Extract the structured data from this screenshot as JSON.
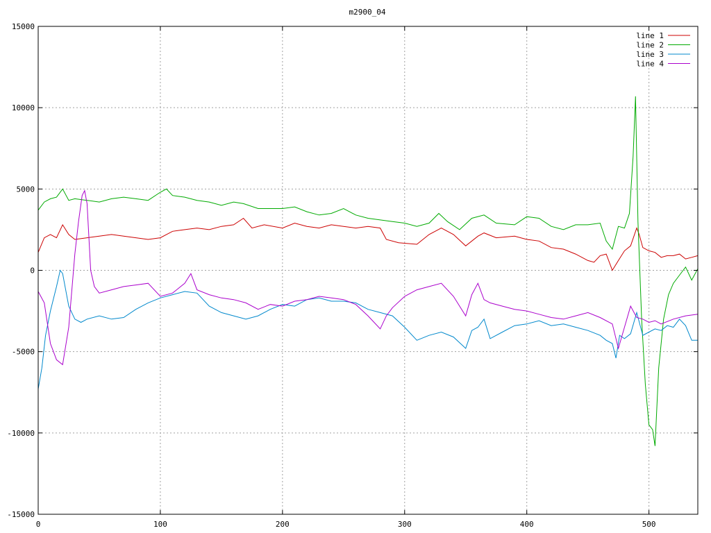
{
  "chart_data": {
    "type": "line",
    "title": "m2900_04",
    "xlabel": "",
    "ylabel": "",
    "xlim": [
      0,
      540
    ],
    "ylim": [
      -15000,
      15000
    ],
    "x_ticks": [
      0,
      100,
      200,
      300,
      400,
      500
    ],
    "y_ticks": [
      -15000,
      -10000,
      -5000,
      0,
      5000,
      10000,
      15000
    ],
    "grid": true,
    "legend_position": "top-right",
    "series": [
      {
        "name": "line 1",
        "color": "#cc0000",
        "x": [
          0,
          5,
          10,
          15,
          20,
          25,
          30,
          40,
          50,
          60,
          70,
          80,
          90,
          100,
          110,
          120,
          130,
          140,
          150,
          160,
          168,
          175,
          185,
          200,
          210,
          220,
          230,
          240,
          250,
          260,
          270,
          280,
          285,
          295,
          310,
          320,
          330,
          340,
          350,
          360,
          365,
          375,
          390,
          400,
          410,
          420,
          430,
          440,
          450,
          455,
          460,
          465,
          470,
          475,
          480,
          485,
          490,
          492,
          495,
          500,
          505,
          510,
          515,
          520,
          525,
          530,
          535,
          540
        ],
        "values": [
          1100,
          2000,
          2200,
          2000,
          2800,
          2200,
          1900,
          2000,
          2100,
          2200,
          2100,
          2000,
          1900,
          2000,
          2400,
          2500,
          2600,
          2500,
          2700,
          2800,
          3200,
          2600,
          2800,
          2600,
          2900,
          2700,
          2600,
          2800,
          2700,
          2600,
          2700,
          2600,
          1900,
          1700,
          1600,
          2200,
          2600,
          2200,
          1500,
          2100,
          2300,
          2000,
          2100,
          1900,
          1800,
          1400,
          1300,
          1000,
          600,
          500,
          900,
          1000,
          0,
          600,
          1200,
          1500,
          2600,
          2200,
          1400,
          1200,
          1100,
          800,
          900,
          900,
          1000,
          700,
          800,
          900
        ]
      },
      {
        "name": "line 2",
        "color": "#00aa00",
        "x": [
          0,
          5,
          10,
          15,
          20,
          25,
          30,
          40,
          50,
          60,
          70,
          80,
          90,
          100,
          105,
          110,
          120,
          130,
          140,
          150,
          160,
          168,
          180,
          200,
          210,
          220,
          230,
          240,
          250,
          260,
          270,
          280,
          290,
          300,
          310,
          320,
          328,
          335,
          345,
          355,
          365,
          375,
          390,
          400,
          410,
          420,
          430,
          440,
          450,
          460,
          465,
          470,
          475,
          480,
          484,
          487,
          489,
          491,
          494,
          497,
          500,
          503,
          505,
          508,
          512,
          516,
          520,
          525,
          530,
          535,
          540
        ],
        "values": [
          3700,
          4200,
          4400,
          4500,
          5000,
          4300,
          4400,
          4300,
          4200,
          4400,
          4500,
          4400,
          4300,
          4800,
          5000,
          4600,
          4500,
          4300,
          4200,
          4000,
          4200,
          4100,
          3800,
          3800,
          3900,
          3600,
          3400,
          3500,
          3800,
          3400,
          3200,
          3100,
          3000,
          2900,
          2700,
          2900,
          3500,
          3000,
          2500,
          3200,
          3400,
          2900,
          2800,
          3300,
          3200,
          2700,
          2500,
          2800,
          2800,
          2900,
          1800,
          1300,
          2700,
          2600,
          3500,
          7000,
          10700,
          3000,
          -3000,
          -7000,
          -9500,
          -9800,
          -10800,
          -6000,
          -3000,
          -1500,
          -800,
          -300,
          200,
          -600,
          100
        ]
      },
      {
        "name": "line 3",
        "color": "#0088cc",
        "x": [
          0,
          3,
          6,
          10,
          15,
          18,
          20,
          25,
          30,
          35,
          40,
          50,
          60,
          70,
          80,
          90,
          100,
          110,
          120,
          130,
          140,
          150,
          160,
          170,
          180,
          190,
          200,
          210,
          220,
          230,
          240,
          250,
          260,
          270,
          280,
          290,
          300,
          310,
          320,
          330,
          340,
          350,
          355,
          360,
          365,
          370,
          380,
          390,
          400,
          410,
          420,
          430,
          440,
          450,
          460,
          465,
          470,
          473,
          476,
          480,
          485,
          490,
          495,
          500,
          505,
          510,
          515,
          520,
          525,
          530,
          535,
          540
        ],
        "values": [
          -7300,
          -6000,
          -4000,
          -2500,
          -1000,
          0,
          -200,
          -2200,
          -3000,
          -3200,
          -3000,
          -2800,
          -3000,
          -2900,
          -2400,
          -2000,
          -1700,
          -1500,
          -1300,
          -1400,
          -2200,
          -2600,
          -2800,
          -3000,
          -2800,
          -2400,
          -2100,
          -2200,
          -1800,
          -1700,
          -1900,
          -1900,
          -2000,
          -2400,
          -2600,
          -2800,
          -3500,
          -4300,
          -4000,
          -3800,
          -4100,
          -4800,
          -3700,
          -3500,
          -3000,
          -4200,
          -3800,
          -3400,
          -3300,
          -3100,
          -3400,
          -3300,
          -3500,
          -3700,
          -4000,
          -4300,
          -4500,
          -5400,
          -4000,
          -4200,
          -3900,
          -2600,
          -4000,
          -3800,
          -3600,
          -3700,
          -3400,
          -3500,
          -3000,
          -3400,
          -4300,
          -4300
        ]
      },
      {
        "name": "line 4",
        "color": "#aa00cc",
        "x": [
          0,
          5,
          10,
          15,
          20,
          25,
          30,
          33,
          36,
          38,
          40,
          43,
          46,
          50,
          60,
          70,
          80,
          90,
          100,
          110,
          120,
          125,
          130,
          140,
          150,
          160,
          170,
          180,
          190,
          200,
          210,
          220,
          230,
          240,
          250,
          260,
          270,
          280,
          285,
          290,
          300,
          310,
          320,
          330,
          340,
          350,
          355,
          360,
          365,
          370,
          380,
          390,
          400,
          410,
          420,
          430,
          440,
          450,
          460,
          470,
          475,
          480,
          485,
          490,
          495,
          500,
          505,
          510,
          520,
          530,
          540
        ],
        "values": [
          -1300,
          -2000,
          -4500,
          -5500,
          -5800,
          -3500,
          1000,
          3000,
          4600,
          4900,
          4100,
          0,
          -1000,
          -1400,
          -1200,
          -1000,
          -900,
          -800,
          -1600,
          -1400,
          -800,
          -200,
          -1200,
          -1500,
          -1700,
          -1800,
          -2000,
          -2400,
          -2100,
          -2200,
          -1900,
          -1800,
          -1600,
          -1700,
          -1800,
          -2100,
          -2800,
          -3600,
          -2800,
          -2300,
          -1600,
          -1200,
          -1000,
          -800,
          -1600,
          -2800,
          -1500,
          -800,
          -1800,
          -2000,
          -2200,
          -2400,
          -2500,
          -2700,
          -2900,
          -3000,
          -2800,
          -2600,
          -2900,
          -3300,
          -4800,
          -3500,
          -2200,
          -2900,
          -3000,
          -3200,
          -3100,
          -3300,
          -3000,
          -2800,
          -2700
        ]
      }
    ]
  }
}
